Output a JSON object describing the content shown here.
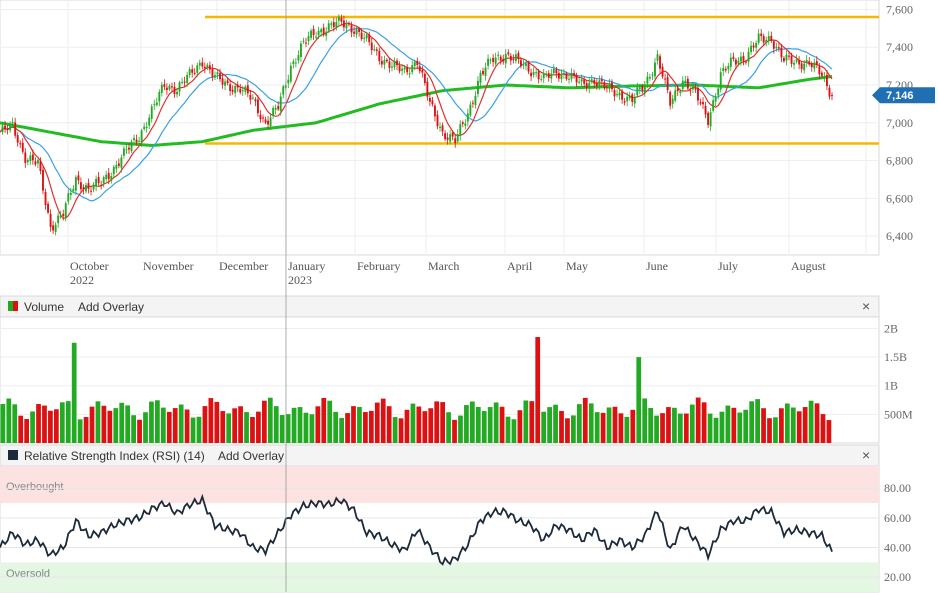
{
  "chart_data": [
    {
      "type": "candlestick",
      "ylim": [
        6300,
        7650
      ],
      "yticks": [
        "6,400",
        "6,600",
        "6,800",
        "7,000",
        "7,200",
        "7,400",
        "7,600"
      ],
      "ytick_values": [
        6400,
        6600,
        6800,
        7000,
        7200,
        7400,
        7600
      ],
      "month_labels": [
        "October",
        "November",
        "December",
        "January",
        "February",
        "March",
        "April",
        "May",
        "June",
        "July",
        "August"
      ],
      "year_labels": [
        "2022",
        "2023"
      ],
      "last_price": 7146,
      "last_price_label": "7,146",
      "horizontal_levels": [
        7560,
        6890
      ],
      "colors": {
        "up": "#22aa22",
        "down": "#dd1111",
        "ma_short": "#e03030",
        "ma_mid": "#3aa0e8",
        "ma_long": "#22bb22",
        "level": "#f5b800",
        "tag": "#1f6fb2"
      },
      "ma_long_path": [
        {
          "t": 0,
          "v": 7000
        },
        {
          "t": 20,
          "v": 6950
        },
        {
          "t": 40,
          "v": 6900
        },
        {
          "t": 60,
          "v": 6880
        },
        {
          "t": 80,
          "v": 6900
        },
        {
          "t": 100,
          "v": 6960
        },
        {
          "t": 125,
          "v": 7000
        },
        {
          "t": 150,
          "v": 7100
        },
        {
          "t": 175,
          "v": 7170
        },
        {
          "t": 200,
          "v": 7200
        },
        {
          "t": 225,
          "v": 7185
        },
        {
          "t": 250,
          "v": 7195
        },
        {
          "t": 275,
          "v": 7200
        },
        {
          "t": 300,
          "v": 7185
        },
        {
          "t": 320,
          "v": 7230
        },
        {
          "t": 329,
          "v": 7245
        }
      ],
      "close_path": [
        {
          "t": 0,
          "v": 6950
        },
        {
          "t": 5,
          "v": 6980
        },
        {
          "t": 10,
          "v": 6820
        },
        {
          "t": 15,
          "v": 6780
        },
        {
          "t": 20,
          "v": 6450
        },
        {
          "t": 25,
          "v": 6520
        },
        {
          "t": 30,
          "v": 6700
        },
        {
          "t": 35,
          "v": 6650
        },
        {
          "t": 40,
          "v": 6680
        },
        {
          "t": 45,
          "v": 6760
        },
        {
          "t": 50,
          "v": 6850
        },
        {
          "t": 55,
          "v": 6930
        },
        {
          "t": 60,
          "v": 7060
        },
        {
          "t": 65,
          "v": 7200
        },
        {
          "t": 70,
          "v": 7180
        },
        {
          "t": 75,
          "v": 7250
        },
        {
          "t": 80,
          "v": 7330
        },
        {
          "t": 85,
          "v": 7240
        },
        {
          "t": 90,
          "v": 7200
        },
        {
          "t": 95,
          "v": 7180
        },
        {
          "t": 100,
          "v": 7120
        },
        {
          "t": 105,
          "v": 7000
        },
        {
          "t": 110,
          "v": 7080
        },
        {
          "t": 115,
          "v": 7300
        },
        {
          "t": 120,
          "v": 7420
        },
        {
          "t": 125,
          "v": 7480
        },
        {
          "t": 130,
          "v": 7510
        },
        {
          "t": 135,
          "v": 7530
        },
        {
          "t": 140,
          "v": 7500
        },
        {
          "t": 145,
          "v": 7430
        },
        {
          "t": 150,
          "v": 7350
        },
        {
          "t": 155,
          "v": 7300
        },
        {
          "t": 160,
          "v": 7270
        },
        {
          "t": 165,
          "v": 7330
        },
        {
          "t": 170,
          "v": 7100
        },
        {
          "t": 175,
          "v": 6950
        },
        {
          "t": 180,
          "v": 6900
        },
        {
          "t": 185,
          "v": 7050
        },
        {
          "t": 190,
          "v": 7250
        },
        {
          "t": 195,
          "v": 7340
        },
        {
          "t": 200,
          "v": 7360
        },
        {
          "t": 205,
          "v": 7320
        },
        {
          "t": 210,
          "v": 7280
        },
        {
          "t": 215,
          "v": 7230
        },
        {
          "t": 220,
          "v": 7270
        },
        {
          "t": 225,
          "v": 7250
        },
        {
          "t": 230,
          "v": 7200
        },
        {
          "t": 235,
          "v": 7230
        },
        {
          "t": 240,
          "v": 7180
        },
        {
          "t": 245,
          "v": 7150
        },
        {
          "t": 250,
          "v": 7120
        },
        {
          "t": 255,
          "v": 7200
        },
        {
          "t": 260,
          "v": 7350
        },
        {
          "t": 265,
          "v": 7100
        },
        {
          "t": 270,
          "v": 7230
        },
        {
          "t": 275,
          "v": 7150
        },
        {
          "t": 280,
          "v": 7020
        },
        {
          "t": 285,
          "v": 7250
        },
        {
          "t": 290,
          "v": 7330
        },
        {
          "t": 295,
          "v": 7350
        },
        {
          "t": 300,
          "v": 7440
        },
        {
          "t": 305,
          "v": 7450
        },
        {
          "t": 310,
          "v": 7330
        },
        {
          "t": 315,
          "v": 7320
        },
        {
          "t": 320,
          "v": 7320
        },
        {
          "t": 325,
          "v": 7250
        },
        {
          "t": 329,
          "v": 7146
        }
      ]
    },
    {
      "type": "bar",
      "title": "Volume",
      "yticks": [
        "500M",
        "1B",
        "1.5B",
        "2B"
      ],
      "ytick_values": [
        500,
        1000,
        1500,
        2000
      ],
      "ylim": [
        0,
        2200
      ],
      "unit": "M"
    },
    {
      "type": "line",
      "title": "Relative Strength Index (RSI) (14)",
      "yticks": [
        "20.00",
        "40.00",
        "60.00",
        "80.00"
      ],
      "ytick_values": [
        20,
        40,
        60,
        80
      ],
      "ylim": [
        10,
        95
      ],
      "zones": {
        "overbought": 70,
        "oversold": 30
      },
      "zone_labels": {
        "overbought": "Overbought",
        "oversold": "Oversold"
      },
      "series": [
        {
          "t": 0,
          "v": 40
        },
        {
          "t": 5,
          "v": 50
        },
        {
          "t": 10,
          "v": 42
        },
        {
          "t": 15,
          "v": 45
        },
        {
          "t": 20,
          "v": 35
        },
        {
          "t": 25,
          "v": 40
        },
        {
          "t": 30,
          "v": 58
        },
        {
          "t": 35,
          "v": 48
        },
        {
          "t": 40,
          "v": 50
        },
        {
          "t": 45,
          "v": 55
        },
        {
          "t": 50,
          "v": 58
        },
        {
          "t": 55,
          "v": 60
        },
        {
          "t": 60,
          "v": 66
        },
        {
          "t": 65,
          "v": 70
        },
        {
          "t": 70,
          "v": 63
        },
        {
          "t": 75,
          "v": 69
        },
        {
          "t": 80,
          "v": 72
        },
        {
          "t": 85,
          "v": 55
        },
        {
          "t": 90,
          "v": 52
        },
        {
          "t": 95,
          "v": 50
        },
        {
          "t": 100,
          "v": 40
        },
        {
          "t": 105,
          "v": 38
        },
        {
          "t": 110,
          "v": 50
        },
        {
          "t": 115,
          "v": 62
        },
        {
          "t": 120,
          "v": 68
        },
        {
          "t": 125,
          "v": 70
        },
        {
          "t": 130,
          "v": 69
        },
        {
          "t": 135,
          "v": 72
        },
        {
          "t": 140,
          "v": 65
        },
        {
          "t": 145,
          "v": 50
        },
        {
          "t": 150,
          "v": 48
        },
        {
          "t": 155,
          "v": 42
        },
        {
          "t": 160,
          "v": 38
        },
        {
          "t": 165,
          "v": 52
        },
        {
          "t": 170,
          "v": 40
        },
        {
          "t": 175,
          "v": 30
        },
        {
          "t": 180,
          "v": 32
        },
        {
          "t": 185,
          "v": 42
        },
        {
          "t": 190,
          "v": 58
        },
        {
          "t": 195,
          "v": 64
        },
        {
          "t": 200,
          "v": 64
        },
        {
          "t": 205,
          "v": 58
        },
        {
          "t": 210,
          "v": 55
        },
        {
          "t": 215,
          "v": 45
        },
        {
          "t": 220,
          "v": 55
        },
        {
          "t": 225,
          "v": 52
        },
        {
          "t": 230,
          "v": 45
        },
        {
          "t": 235,
          "v": 52
        },
        {
          "t": 240,
          "v": 40
        },
        {
          "t": 245,
          "v": 45
        },
        {
          "t": 250,
          "v": 40
        },
        {
          "t": 255,
          "v": 48
        },
        {
          "t": 260,
          "v": 65
        },
        {
          "t": 265,
          "v": 38
        },
        {
          "t": 270,
          "v": 55
        },
        {
          "t": 275,
          "v": 45
        },
        {
          "t": 280,
          "v": 35
        },
        {
          "t": 285,
          "v": 52
        },
        {
          "t": 290,
          "v": 58
        },
        {
          "t": 295,
          "v": 58
        },
        {
          "t": 300,
          "v": 66
        },
        {
          "t": 305,
          "v": 64
        },
        {
          "t": 310,
          "v": 50
        },
        {
          "t": 315,
          "v": 52
        },
        {
          "t": 320,
          "v": 50
        },
        {
          "t": 325,
          "v": 48
        },
        {
          "t": 329,
          "v": 37
        }
      ]
    }
  ],
  "panels": {
    "volume": {
      "title": "Volume",
      "add_overlay": "Add Overlay"
    },
    "rsi": {
      "title": "Relative Strength Index (RSI) (14)",
      "add_overlay": "Add Overlay"
    }
  },
  "icons": {
    "close": "close-icon",
    "legend_swatch": "legend-swatch-icon"
  },
  "close_glyph": "×"
}
